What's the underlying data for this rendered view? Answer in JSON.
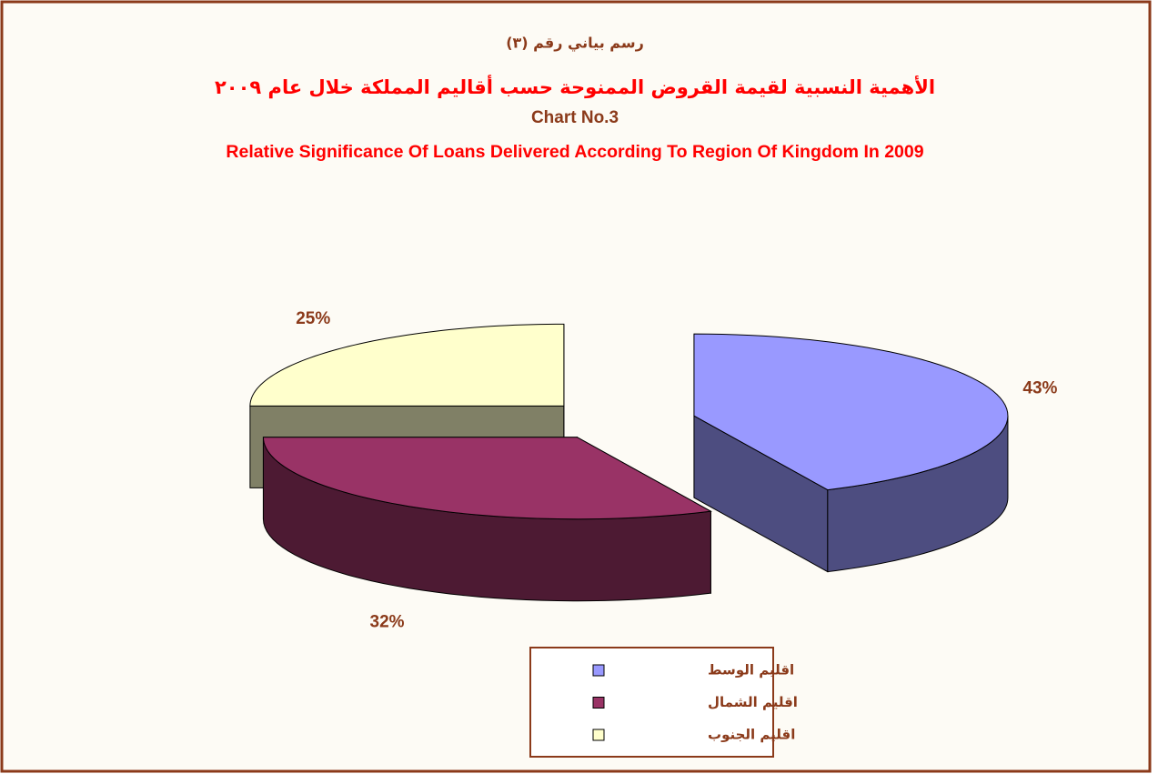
{
  "chart_data": {
    "type": "pie",
    "titles": [
      "رسم بياني رقم (٣)",
      "الأهمية النسبية لقيمة القروض الممنوحة حسب أقاليم المملكة خلال عام ٢٠٠٩",
      "Chart No.3",
      "Relative Significance Of Loans Delivered According To Region Of Kingdom In 2009"
    ],
    "categories": [
      "اقليم الوسط",
      "اقليم الشمال",
      "اقليم الجنوب"
    ],
    "values": [
      43,
      32,
      25
    ],
    "value_labels": [
      "43%",
      "32%",
      "25%"
    ],
    "colors": [
      "#9999ff",
      "#993366",
      "#ffffcc"
    ],
    "legend": "bottom"
  }
}
